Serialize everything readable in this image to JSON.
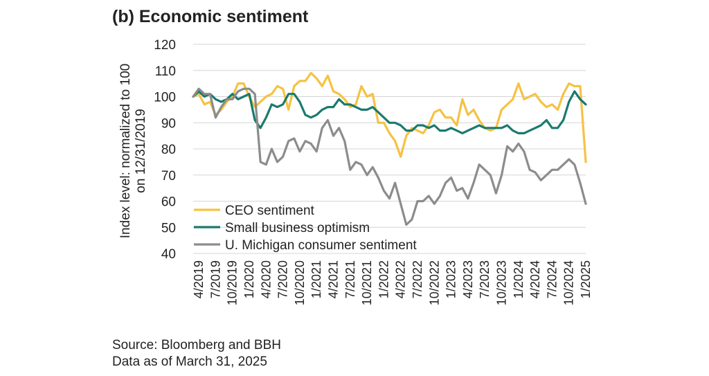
{
  "chart_data": {
    "type": "line",
    "title": "(b) Economic sentiment",
    "ylabel": "Index level: normalized to 100 on 12/31/2019",
    "ylim": [
      40,
      120
    ],
    "yticks": [
      40,
      50,
      60,
      70,
      80,
      90,
      100,
      110,
      120
    ],
    "x_start": "3/2019",
    "x_step": "month",
    "xticks": [
      {
        "index": 1,
        "label": "4/2019"
      },
      {
        "index": 4,
        "label": "7/2019"
      },
      {
        "index": 7,
        "label": "10/2019"
      },
      {
        "index": 10,
        "label": "1/2020"
      },
      {
        "index": 13,
        "label": "4/2020"
      },
      {
        "index": 16,
        "label": "7/2020"
      },
      {
        "index": 19,
        "label": "10/2020"
      },
      {
        "index": 22,
        "label": "1/2021"
      },
      {
        "index": 25,
        "label": "4/2021"
      },
      {
        "index": 28,
        "label": "7/2021"
      },
      {
        "index": 31,
        "label": "10/2021"
      },
      {
        "index": 34,
        "label": "1/2022"
      },
      {
        "index": 37,
        "label": "4/2022"
      },
      {
        "index": 40,
        "label": "7/2022"
      },
      {
        "index": 43,
        "label": "10/2022"
      },
      {
        "index": 46,
        "label": "1/2023"
      },
      {
        "index": 49,
        "label": "4/2023"
      },
      {
        "index": 52,
        "label": "7/2023"
      },
      {
        "index": 55,
        "label": "10/2023"
      },
      {
        "index": 58,
        "label": "1/2024"
      },
      {
        "index": 61,
        "label": "4/2024"
      },
      {
        "index": 64,
        "label": "7/2024"
      },
      {
        "index": 67,
        "label": "10/2024"
      },
      {
        "index": 70,
        "label": "1/2025"
      }
    ],
    "series": [
      {
        "name": "CEO sentiment",
        "color": "#F5C242",
        "values": [
          100,
          101,
          97,
          98,
          93,
          95,
          98,
          100,
          105,
          105,
          100,
          96,
          98,
          100,
          101,
          104,
          103,
          95,
          104,
          106,
          106,
          109,
          107,
          104,
          108,
          102,
          101,
          99,
          96,
          97,
          104,
          100,
          101,
          90,
          90,
          86,
          83,
          77,
          85,
          88,
          87,
          86,
          89,
          94,
          95,
          92,
          92,
          89,
          99,
          93,
          95,
          91,
          88,
          87,
          88,
          95,
          97,
          99,
          105,
          99,
          100,
          101,
          98,
          96,
          97,
          95,
          101,
          105,
          104,
          104,
          75
        ]
      },
      {
        "name": "Small business optimism",
        "color": "#1A7A6E",
        "values": [
          100,
          102,
          100,
          101,
          99,
          98,
          99,
          101,
          99,
          100,
          101,
          91,
          88,
          92,
          97,
          96,
          97,
          101,
          101,
          98,
          93,
          92,
          93,
          95,
          96,
          96,
          99,
          97,
          97,
          96,
          95,
          95,
          96,
          94,
          92,
          90,
          90,
          89,
          87,
          87,
          89,
          89,
          88,
          89,
          87,
          87,
          88,
          87,
          86,
          87,
          88,
          89,
          88,
          88,
          88,
          88,
          89,
          87,
          86,
          86,
          87,
          88,
          89,
          91,
          88,
          88,
          91,
          98,
          102,
          99,
          97
        ]
      },
      {
        "name": "U. Michigan consumer sentiment",
        "color": "#8C8C8C",
        "values": [
          100,
          103,
          101,
          101,
          92,
          96,
          99,
          99,
          102,
          103,
          103,
          101,
          75,
          74,
          80,
          75,
          77,
          83,
          84,
          79,
          83,
          82,
          79,
          88,
          91,
          85,
          88,
          83,
          72,
          75,
          74,
          70,
          73,
          69,
          64,
          61,
          67,
          59,
          51,
          53,
          60,
          60,
          62,
          59,
          62,
          67,
          69,
          64,
          65,
          61,
          67,
          74,
          72,
          70,
          63,
          70,
          81,
          79,
          82,
          79,
          72,
          71,
          68,
          70,
          72,
          72,
          74,
          76,
          74,
          67,
          59
        ]
      }
    ]
  },
  "footer": {
    "source": "Source: Bloomberg and BBH",
    "data_as_of": "Data as of March 31, 2025"
  }
}
